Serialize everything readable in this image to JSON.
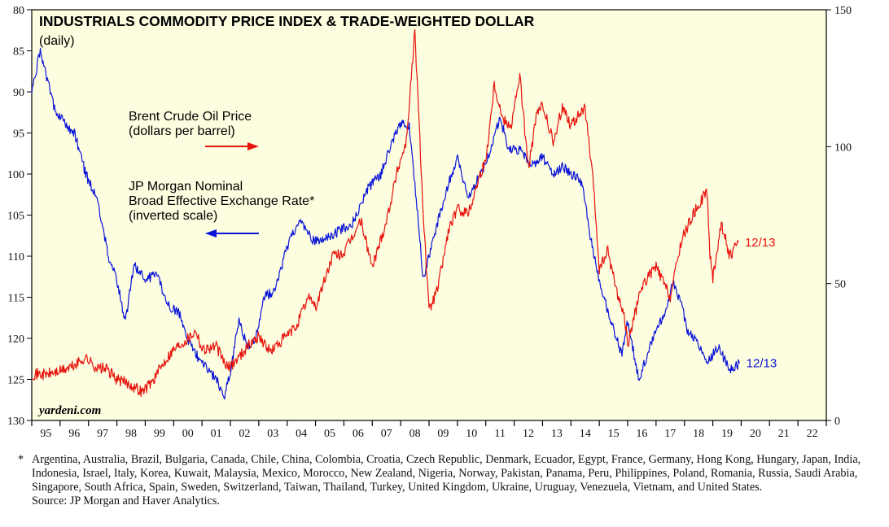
{
  "chart_data": {
    "type": "line",
    "title": "INDUSTRIALS COMMODITY PRICE INDEX & TRADE-WEIGHTED DOLLAR",
    "subtitle": "(daily)",
    "watermark": "yardeni.com",
    "left_axis": {
      "ticks": [
        80,
        85,
        90,
        95,
        100,
        105,
        110,
        115,
        120,
        125,
        130
      ],
      "range": [
        80,
        130
      ],
      "inverted": true
    },
    "right_axis": {
      "ticks": [
        0,
        50,
        100,
        150
      ],
      "range": [
        0,
        150
      ]
    },
    "x_axis": {
      "ticks": [
        "95",
        "96",
        "97",
        "98",
        "99",
        "00",
        "01",
        "02",
        "03",
        "04",
        "05",
        "06",
        "07",
        "08",
        "09",
        "10",
        "11",
        "12",
        "13",
        "14",
        "15",
        "16",
        "17",
        "18",
        "19",
        "20",
        "21",
        "22"
      ],
      "range": [
        1995,
        2023
      ]
    },
    "grid": false,
    "series": [
      {
        "name": "Brent Crude Oil Price (dollars per barrel)",
        "axis": "right",
        "color": "#e8120c",
        "end_label": "12/13",
        "points": [
          [
            1995.0,
            17
          ],
          [
            1995.5,
            16.8
          ],
          [
            1996.0,
            18
          ],
          [
            1996.5,
            20
          ],
          [
            1996.9,
            23
          ],
          [
            1997.3,
            19
          ],
          [
            1997.6,
            19
          ],
          [
            1998.0,
            15
          ],
          [
            1998.5,
            13
          ],
          [
            1998.9,
            10.5
          ],
          [
            1999.3,
            15
          ],
          [
            1999.7,
            22
          ],
          [
            2000.0,
            26
          ],
          [
            2000.5,
            30
          ],
          [
            2000.8,
            33
          ],
          [
            2001.0,
            26
          ],
          [
            2001.5,
            27
          ],
          [
            2001.9,
            19
          ],
          [
            2002.2,
            22
          ],
          [
            2002.6,
            27
          ],
          [
            2003.0,
            31
          ],
          [
            2003.4,
            25
          ],
          [
            2003.9,
            30
          ],
          [
            2004.3,
            34
          ],
          [
            2004.8,
            46
          ],
          [
            2005.0,
            41
          ],
          [
            2005.6,
            60
          ],
          [
            2006.0,
            61
          ],
          [
            2006.6,
            73
          ],
          [
            2007.0,
            56
          ],
          [
            2007.5,
            73
          ],
          [
            2007.9,
            92
          ],
          [
            2008.2,
            102
          ],
          [
            2008.5,
            142
          ],
          [
            2008.8,
            75
          ],
          [
            2009.0,
            40
          ],
          [
            2009.3,
            48
          ],
          [
            2009.7,
            70
          ],
          [
            2010.0,
            77
          ],
          [
            2010.4,
            76
          ],
          [
            2010.8,
            90
          ],
          [
            2011.0,
            95
          ],
          [
            2011.3,
            123
          ],
          [
            2011.6,
            110
          ],
          [
            2011.9,
            108
          ],
          [
            2012.2,
            126
          ],
          [
            2012.5,
            92
          ],
          [
            2012.8,
            112
          ],
          [
            2013.0,
            115
          ],
          [
            2013.4,
            101
          ],
          [
            2013.7,
            115
          ],
          [
            2014.0,
            108
          ],
          [
            2014.5,
            114
          ],
          [
            2014.8,
            85
          ],
          [
            2015.0,
            55
          ],
          [
            2015.3,
            62
          ],
          [
            2015.6,
            48
          ],
          [
            2015.9,
            37
          ],
          [
            2016.0,
            28
          ],
          [
            2016.5,
            49
          ],
          [
            2016.9,
            55
          ],
          [
            2017.0,
            56
          ],
          [
            2017.5,
            45
          ],
          [
            2017.9,
            66
          ],
          [
            2018.3,
            75
          ],
          [
            2018.8,
            84
          ],
          [
            2018.9,
            60
          ],
          [
            2019.0,
            52
          ],
          [
            2019.3,
            72
          ],
          [
            2019.6,
            60
          ],
          [
            2019.9,
            65
          ]
        ]
      },
      {
        "name": "JP Morgan Nominal Broad Effective Exchange Rate* (inverted scale)",
        "axis": "left",
        "color": "#0a14d8",
        "end_label": "12/13",
        "points": [
          [
            1995.0,
            90
          ],
          [
            1995.3,
            85
          ],
          [
            1995.5,
            88
          ],
          [
            1995.8,
            92
          ],
          [
            1996.2,
            94
          ],
          [
            1996.5,
            95
          ],
          [
            1996.9,
            100
          ],
          [
            1997.3,
            103
          ],
          [
            1997.7,
            110
          ],
          [
            1998.0,
            113
          ],
          [
            1998.3,
            118
          ],
          [
            1998.6,
            111
          ],
          [
            1999.0,
            113
          ],
          [
            1999.4,
            112
          ],
          [
            1999.8,
            116
          ],
          [
            2000.2,
            117
          ],
          [
            2000.6,
            121
          ],
          [
            2001.0,
            123
          ],
          [
            2001.5,
            125
          ],
          [
            2001.8,
            127
          ],
          [
            2002.0,
            124
          ],
          [
            2002.3,
            118
          ],
          [
            2002.6,
            121
          ],
          [
            2002.9,
            120
          ],
          [
            2003.2,
            115
          ],
          [
            2003.6,
            114
          ],
          [
            2003.9,
            110
          ],
          [
            2004.2,
            107
          ],
          [
            2004.5,
            106
          ],
          [
            2004.9,
            108
          ],
          [
            2005.3,
            108
          ],
          [
            2005.8,
            107
          ],
          [
            2006.3,
            106
          ],
          [
            2006.8,
            102
          ],
          [
            2007.3,
            100
          ],
          [
            2007.7,
            96
          ],
          [
            2008.0,
            94
          ],
          [
            2008.3,
            94
          ],
          [
            2008.6,
            105
          ],
          [
            2008.8,
            113
          ],
          [
            2009.0,
            110
          ],
          [
            2009.3,
            106
          ],
          [
            2009.7,
            101
          ],
          [
            2010.0,
            98
          ],
          [
            2010.4,
            103
          ],
          [
            2010.8,
            100
          ],
          [
            2011.2,
            97
          ],
          [
            2011.5,
            93
          ],
          [
            2011.8,
            97
          ],
          [
            2012.2,
            97
          ],
          [
            2012.6,
            99
          ],
          [
            2013.0,
            98
          ],
          [
            2013.4,
            100
          ],
          [
            2013.7,
            99
          ],
          [
            2014.0,
            100
          ],
          [
            2014.4,
            101
          ],
          [
            2014.7,
            108
          ],
          [
            2015.0,
            113
          ],
          [
            2015.4,
            118
          ],
          [
            2015.8,
            122
          ],
          [
            2016.0,
            118
          ],
          [
            2016.4,
            125
          ],
          [
            2016.8,
            121
          ],
          [
            2017.0,
            119
          ],
          [
            2017.3,
            117
          ],
          [
            2017.6,
            113
          ],
          [
            2017.9,
            116
          ],
          [
            2018.1,
            119
          ],
          [
            2018.4,
            120
          ],
          [
            2018.8,
            123
          ],
          [
            2019.2,
            121
          ],
          [
            2019.6,
            124
          ],
          [
            2019.95,
            123
          ]
        ]
      }
    ],
    "annotations": [
      {
        "lines": [
          "Brent Crude Oil Price",
          "(dollars per barrel)"
        ],
        "arrow": "right",
        "color": "#e8120c"
      },
      {
        "lines": [
          "JP Morgan Nominal",
          "Broad Effective Exchange Rate*",
          "(inverted scale)"
        ],
        "arrow": "left",
        "color": "#0a14d8"
      }
    ]
  },
  "footnote": {
    "marker": "*",
    "text": "Argentina, Australia, Brazil, Bulgaria, Canada, Chile, China, Colombia, Croatia, Czech Republic, Denmark, Ecuador, Egypt, France, Germany, Hong Kong, Hungary, Japan, India, Indonesia, Israel, Italy, Korea, Kuwait, Malaysia, Mexico, Morocco, New Zealand, Nigeria, Norway, Pakistan, Panama, Peru, Philippines, Poland, Romania, Russia, Saudi Arabia, Singapore, South Africa, Spain, Sweden, Switzerland, Taiwan, Thailand, Turkey, United Kingdom, Ukraine, Uruguay, Venezuela, Vietnam, and United States.",
    "source": "Source: JP Morgan and Haver Analytics."
  }
}
